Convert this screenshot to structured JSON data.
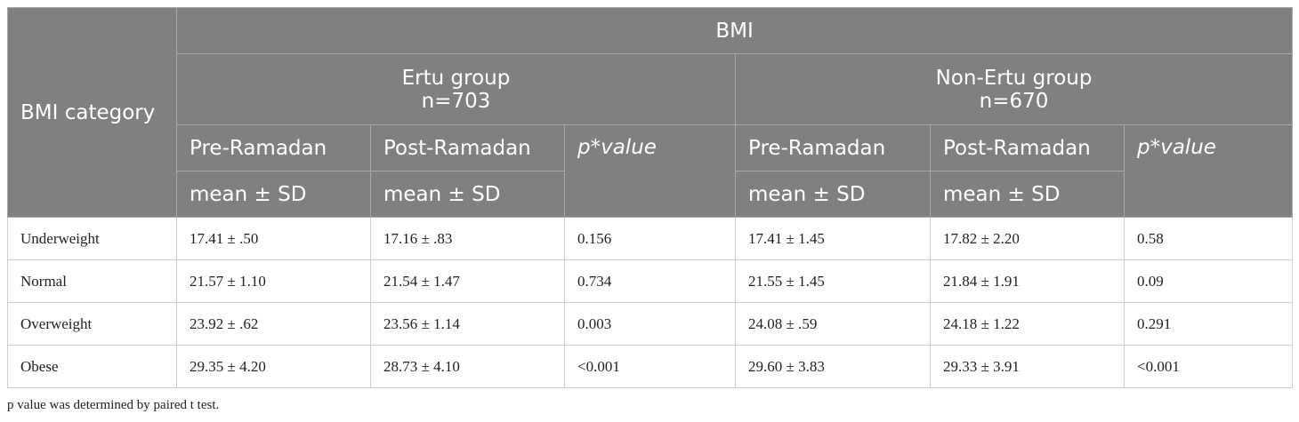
{
  "header": {
    "title": "BMI",
    "row_header": "BMI category",
    "groups": [
      {
        "name": "Ertu group",
        "n": "n=703"
      },
      {
        "name": "Non-Ertu group",
        "n": "n=670"
      }
    ],
    "columns": [
      {
        "label": "Pre-Ramadan",
        "sub": "mean ± SD"
      },
      {
        "label": "Post-Ramadan",
        "sub": "mean ± SD"
      },
      {
        "label": "p*value"
      },
      {
        "label": "Pre-Ramadan",
        "sub": "mean ± SD"
      },
      {
        "label": "Post-Ramadan",
        "sub": "mean ± SD"
      },
      {
        "label": "p*value"
      }
    ]
  },
  "table": {
    "rows": [
      [
        "Underweight",
        "17.41 ± .50",
        "17.16 ± .83",
        "0.156",
        "17.41 ± 1.45",
        "17.82 ± 2.20",
        "0.58"
      ],
      [
        "Normal",
        "21.57 ± 1.10",
        "21.54 ± 1.47",
        "0.734",
        "21.55 ± 1.45",
        "21.84 ± 1.91",
        "0.09"
      ],
      [
        "Overweight",
        "23.92 ± .62",
        "23.56 ± 1.14",
        "0.003",
        "24.08 ± .59",
        "24.18 ± 1.22",
        "0.291"
      ],
      [
        "Obese",
        "29.35 ± 4.20",
        "28.73 ± 4.10",
        "<0.001",
        "29.60 ± 3.83",
        "29.33 ± 3.91",
        "<0.001"
      ]
    ]
  },
  "footnote": "p value was determined by paired t test."
}
